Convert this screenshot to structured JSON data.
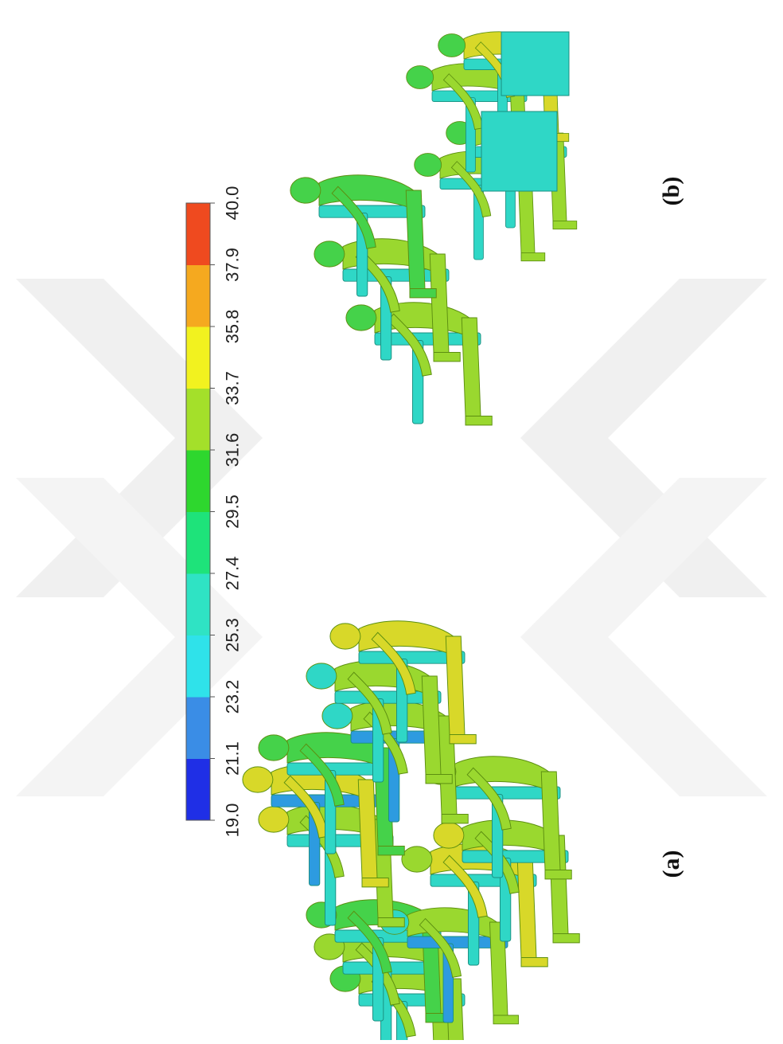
{
  "figure": {
    "colorbar": {
      "ticks": [
        "19.0",
        "21.1",
        "23.2",
        "25.3",
        "27.4",
        "29.5",
        "31.6",
        "33.7",
        "35.8",
        "37.9",
        "40.0"
      ],
      "colors": [
        "#1f2fe6",
        "#3a8de6",
        "#2fe2ea",
        "#2fe3c4",
        "#1ee37a",
        "#2ed72e",
        "#a4e02a",
        "#f2f21f",
        "#f5a91f",
        "#ef4a1f"
      ]
    },
    "panels": [
      {
        "label": "(a)"
      },
      {
        "label": "(b)"
      }
    ],
    "palette": {
      "body_main": "#9ad82f",
      "body_warm": "#d8d829",
      "body_green": "#45d24a",
      "seat_cyan": "#2fd7c6",
      "seat_blue": "#2d9be0",
      "watermark": "#efefef"
    }
  }
}
